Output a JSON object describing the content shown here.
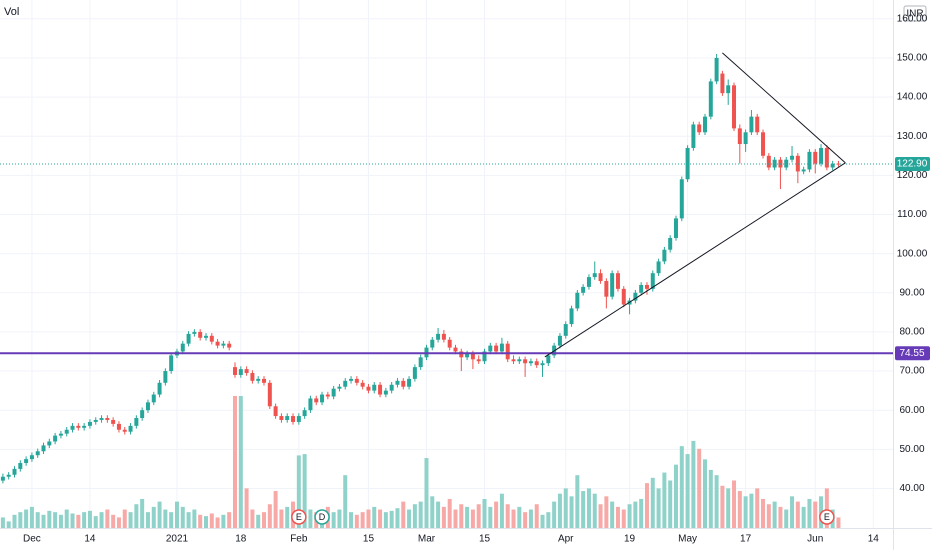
{
  "chart_data": {
    "type": "candlestick",
    "volume_label": "Vol",
    "currency": "INR",
    "up_color": "#26a69a",
    "down_color": "#ef5350",
    "volume_up_color": "#8fd2c9",
    "volume_down_color": "#f7a9a7",
    "ylim": [
      29.9,
      164.8
    ],
    "xlim": [
      -0.5,
      153.4
    ],
    "y2lim": [
      0,
      400
    ],
    "grid": true,
    "yticks": [
      {
        "value": 40,
        "label": "40.00"
      },
      {
        "value": 50,
        "label": "50.00"
      },
      {
        "value": 60,
        "label": "60.00"
      },
      {
        "value": 70,
        "label": "70.00"
      },
      {
        "value": 80,
        "label": "80.00"
      },
      {
        "value": 90,
        "label": "90.00"
      },
      {
        "value": 100,
        "label": "100.00"
      },
      {
        "value": 110,
        "label": "110.00"
      },
      {
        "value": 120,
        "label": "120.00"
      },
      {
        "value": 130,
        "label": "130.00"
      },
      {
        "value": 140,
        "label": "140.00"
      },
      {
        "value": 150,
        "label": "150.00"
      },
      {
        "value": 160,
        "label": "160.00"
      }
    ],
    "xticks": [
      {
        "value": 5,
        "label": "Dec"
      },
      {
        "value": 15,
        "label": "14"
      },
      {
        "value": 30,
        "label": "2021"
      },
      {
        "value": 41,
        "label": "18"
      },
      {
        "value": 51,
        "label": "Feb"
      },
      {
        "value": 63,
        "label": "15"
      },
      {
        "value": 73,
        "label": "Mar"
      },
      {
        "value": 83,
        "label": "15"
      },
      {
        "value": 97,
        "label": "Apr"
      },
      {
        "value": 108,
        "label": "19"
      },
      {
        "value": 118,
        "label": "May"
      },
      {
        "value": 128,
        "label": "17"
      },
      {
        "value": 140,
        "label": "Jun"
      },
      {
        "value": 150,
        "label": "14"
      }
    ],
    "last_price": {
      "value": 122.9,
      "label": "122.90",
      "color": "#26a69a"
    },
    "hline": {
      "value": 74.55,
      "color": "#673ab7"
    },
    "trendlines": [
      {
        "x": [
          93.4,
          145.2
        ],
        "y": [
          73.6,
          123.2
        ]
      },
      {
        "x": [
          124,
          145.2
        ],
        "y": [
          151.3,
          123.2
        ]
      }
    ],
    "events": [
      {
        "label": "E",
        "x": 51
      },
      {
        "label": "D",
        "x": 55
      },
      {
        "label": "E",
        "x": 142
      }
    ],
    "candles": [
      [
        42,
        43.8,
        41.3,
        43
      ],
      [
        43,
        44.2,
        42.3,
        43.5
      ],
      [
        43.5,
        45.7,
        42.8,
        45
      ],
      [
        45,
        47.2,
        44.3,
        46.5
      ],
      [
        46.5,
        48.2,
        45.8,
        47.5
      ],
      [
        47.5,
        49.2,
        46.8,
        48.5
      ],
      [
        48.5,
        50.2,
        47.8,
        49.5
      ],
      [
        49.5,
        51.7,
        48.8,
        51
      ],
      [
        51,
        52.7,
        50.3,
        52
      ],
      [
        52,
        54.2,
        51.3,
        53.5
      ],
      [
        53.5,
        54.7,
        52.8,
        54
      ],
      [
        54,
        55.7,
        53.3,
        55
      ],
      [
        55,
        56.7,
        54.3,
        56
      ],
      [
        56,
        56.7,
        54.8,
        55.5
      ],
      [
        55.5,
        56.7,
        54.8,
        56
      ],
      [
        56,
        57.7,
        55.3,
        57
      ],
      [
        57,
        58.2,
        56.3,
        57.5
      ],
      [
        57.5,
        58.7,
        56.8,
        58
      ],
      [
        58,
        58.7,
        56.8,
        57.5
      ],
      [
        57.5,
        58.2,
        55.8,
        56.5
      ],
      [
        56.5,
        57.2,
        54.3,
        55
      ],
      [
        55,
        55.7,
        53.8,
        54.5
      ],
      [
        54.5,
        56.7,
        53.8,
        56
      ],
      [
        56,
        58.7,
        55.3,
        58
      ],
      [
        58,
        60.7,
        57.3,
        60
      ],
      [
        60,
        62.7,
        59.3,
        62
      ],
      [
        62,
        64.7,
        61.3,
        64
      ],
      [
        64,
        67.7,
        63.3,
        67
      ],
      [
        67,
        70.7,
        66.3,
        70
      ],
      [
        70,
        74.7,
        69.3,
        74
      ],
      [
        74,
        75.7,
        73.3,
        75
      ],
      [
        75,
        77.7,
        74.3,
        77
      ],
      [
        77,
        80.2,
        76.3,
        79.5
      ],
      [
        79.5,
        80.7,
        78.8,
        80
      ],
      [
        80,
        80.7,
        77.8,
        78.5
      ],
      [
        78.5,
        79.7,
        77.8,
        79
      ],
      [
        79,
        79.7,
        76.8,
        77.5
      ],
      [
        77.5,
        78.2,
        75.8,
        76.5
      ],
      [
        76.5,
        77.7,
        75.8,
        77
      ],
      [
        77,
        77.7,
        75.3,
        76
      ],
      [
        71,
        72.2,
        68.3,
        69
      ],
      [
        69,
        71.2,
        68.3,
        70.5
      ],
      [
        70.5,
        71.2,
        68.8,
        69.5
      ],
      [
        69.5,
        70.2,
        66.8,
        67.5
      ],
      [
        67.5,
        68.7,
        66.8,
        68
      ],
      [
        68,
        68.7,
        66.3,
        67
      ],
      [
        67,
        67.7,
        60.3,
        61
      ],
      [
        61,
        61.7,
        57.8,
        58.5
      ],
      [
        58.5,
        59.2,
        56.8,
        57.5
      ],
      [
        57.5,
        59.2,
        56.8,
        58.5
      ],
      [
        58.5,
        59.2,
        56.3,
        57
      ],
      [
        57,
        59.2,
        56.3,
        58.5
      ],
      [
        58.5,
        60.7,
        57.8,
        60
      ],
      [
        60,
        63.7,
        59.3,
        63
      ],
      [
        63,
        63.7,
        61.3,
        62
      ],
      [
        62,
        64.7,
        61.3,
        64
      ],
      [
        64,
        64.7,
        62.8,
        63.5
      ],
      [
        63.5,
        66.2,
        62.8,
        65.5
      ],
      [
        65.5,
        66.7,
        64.8,
        66
      ],
      [
        66,
        68.2,
        65.3,
        67.5
      ],
      [
        67.5,
        68.7,
        66.8,
        68
      ],
      [
        68,
        68.7,
        66.3,
        67
      ],
      [
        67,
        67.7,
        65.3,
        66
      ],
      [
        66,
        66.7,
        64.3,
        65
      ],
      [
        65,
        67.2,
        64.3,
        66.5
      ],
      [
        66.5,
        67.2,
        63.3,
        64
      ],
      [
        64,
        65.7,
        63.3,
        65
      ],
      [
        65,
        67.2,
        64.3,
        66.5
      ],
      [
        66.5,
        68.2,
        65.8,
        67.5
      ],
      [
        67.5,
        68.2,
        65.3,
        66
      ],
      [
        66,
        68.7,
        65.3,
        68
      ],
      [
        68,
        71.7,
        67.3,
        71
      ],
      [
        71,
        74.2,
        70.3,
        73.5
      ],
      [
        73.5,
        76.7,
        72.8,
        76
      ],
      [
        76,
        78.7,
        75.3,
        78
      ],
      [
        78,
        81,
        77.3,
        79.5
      ],
      [
        79.5,
        80.5,
        77.3,
        78
      ],
      [
        78,
        78.7,
        75.3,
        76
      ],
      [
        76,
        76.7,
        74.3,
        75
      ],
      [
        75,
        75.7,
        70,
        73.5
      ],
      [
        73.5,
        75.2,
        72.8,
        74.5
      ],
      [
        74.5,
        75.2,
        70.5,
        73
      ],
      [
        73,
        74,
        71.8,
        72.5
      ],
      [
        72.5,
        75.7,
        71.8,
        75
      ],
      [
        75,
        77.2,
        74.3,
        76.5
      ],
      [
        76.5,
        77.2,
        74.3,
        75
      ],
      [
        75,
        78.5,
        74.3,
        77
      ],
      [
        77,
        77.7,
        72.3,
        73
      ],
      [
        73,
        74,
        71.8,
        72.5
      ],
      [
        72.5,
        73.7,
        71.8,
        73
      ],
      [
        73,
        73.7,
        68.5,
        72
      ],
      [
        72,
        73.2,
        71.3,
        72.5
      ],
      [
        72.5,
        73.2,
        70.8,
        71.5
      ],
      [
        71.5,
        72.7,
        68.5,
        72
      ],
      [
        72,
        74.7,
        71.3,
        74
      ],
      [
        74,
        77.2,
        73.3,
        76.5
      ],
      [
        76.5,
        79.7,
        75.8,
        79
      ],
      [
        79,
        82.7,
        78.3,
        82
      ],
      [
        82,
        86.7,
        81.3,
        86
      ],
      [
        86,
        90.7,
        85.3,
        90
      ],
      [
        90,
        92.2,
        89.3,
        91.5
      ],
      [
        91.5,
        94.7,
        90.8,
        94
      ],
      [
        94,
        98,
        93.3,
        95
      ],
      [
        95,
        96,
        92.3,
        93
      ],
      [
        93,
        93.7,
        86,
        89
      ],
      [
        89,
        95.7,
        88.3,
        95
      ],
      [
        95,
        95.7,
        90.3,
        91
      ],
      [
        91,
        91.7,
        86.3,
        87
      ],
      [
        87,
        88.7,
        84.5,
        88
      ],
      [
        88,
        90.7,
        87.3,
        90
      ],
      [
        90,
        92.7,
        89.3,
        92
      ],
      [
        92,
        92.7,
        89.5,
        91
      ],
      [
        91,
        95.7,
        90.3,
        95
      ],
      [
        95,
        98.7,
        94.3,
        98
      ],
      [
        98,
        101.7,
        97.3,
        101
      ],
      [
        101,
        104.7,
        100.3,
        104
      ],
      [
        104,
        109.7,
        103.3,
        109
      ],
      [
        109,
        119.7,
        108.3,
        119
      ],
      [
        119,
        127.7,
        118.3,
        127
      ],
      [
        127,
        133.7,
        126.3,
        133
      ],
      [
        133,
        133.7,
        130.3,
        131
      ],
      [
        131,
        135.7,
        130.3,
        135
      ],
      [
        135,
        144.7,
        134.3,
        144
      ],
      [
        144,
        151,
        143.3,
        150
      ],
      [
        146,
        146.7,
        140.3,
        141
      ],
      [
        141,
        144.5,
        138,
        143
      ],
      [
        143,
        143.7,
        131.3,
        132
      ],
      [
        132,
        133,
        123,
        128
      ],
      [
        128,
        131.7,
        126,
        131
      ],
      [
        131,
        136.7,
        130.3,
        135
      ],
      [
        135,
        135.7,
        130.3,
        131
      ],
      [
        131,
        131.7,
        124.3,
        125
      ],
      [
        125,
        125.7,
        121.3,
        122
      ],
      [
        122,
        124.7,
        121.3,
        124
      ],
      [
        124,
        124.7,
        116.5,
        122
      ],
      [
        122,
        124.7,
        121.3,
        124
      ],
      [
        124,
        127.5,
        123.3,
        125
      ],
      [
        125,
        125.7,
        118,
        121
      ],
      [
        121,
        122.2,
        120.3,
        121.5
      ],
      [
        121.5,
        126.7,
        120.8,
        126
      ],
      [
        126,
        126.7,
        120.5,
        123
      ],
      [
        123,
        128,
        122.3,
        127
      ],
      [
        127,
        127.7,
        121.3,
        122
      ],
      [
        122,
        123.7,
        121.3,
        123
      ],
      [
        123,
        123.7,
        122.2,
        122.9
      ]
    ],
    "volumes": [
      8,
      5,
      10,
      12,
      14,
      16,
      12,
      10,
      13,
      12,
      10,
      14,
      11,
      10,
      12,
      13,
      9,
      12,
      14,
      10,
      8,
      14,
      12,
      18,
      22,
      12,
      16,
      20,
      14,
      12,
      20,
      16,
      12,
      14,
      10,
      9,
      11,
      8,
      10,
      12,
      100,
      100,
      30,
      14,
      10,
      12,
      18,
      28,
      14,
      16,
      20,
      55,
      56,
      14,
      12,
      12,
      16,
      12,
      14,
      40,
      12,
      10,
      12,
      14,
      16,
      14,
      12,
      13,
      15,
      20,
      14,
      18,
      20,
      53,
      24,
      20,
      16,
      22,
      14,
      18,
      16,
      14,
      18,
      22,
      16,
      20,
      26,
      18,
      14,
      16,
      12,
      14,
      18,
      10,
      12,
      20,
      26,
      30,
      24,
      40,
      28,
      30,
      26,
      18,
      24,
      20,
      16,
      14,
      18,
      20,
      22,
      34,
      38,
      30,
      42,
      36,
      48,
      62,
      56,
      66,
      60,
      52,
      44,
      40,
      32,
      30,
      36,
      28,
      24,
      26,
      30,
      22,
      18,
      20,
      16,
      14,
      24,
      20,
      16,
      22,
      20,
      24,
      30,
      14,
      8
    ]
  }
}
